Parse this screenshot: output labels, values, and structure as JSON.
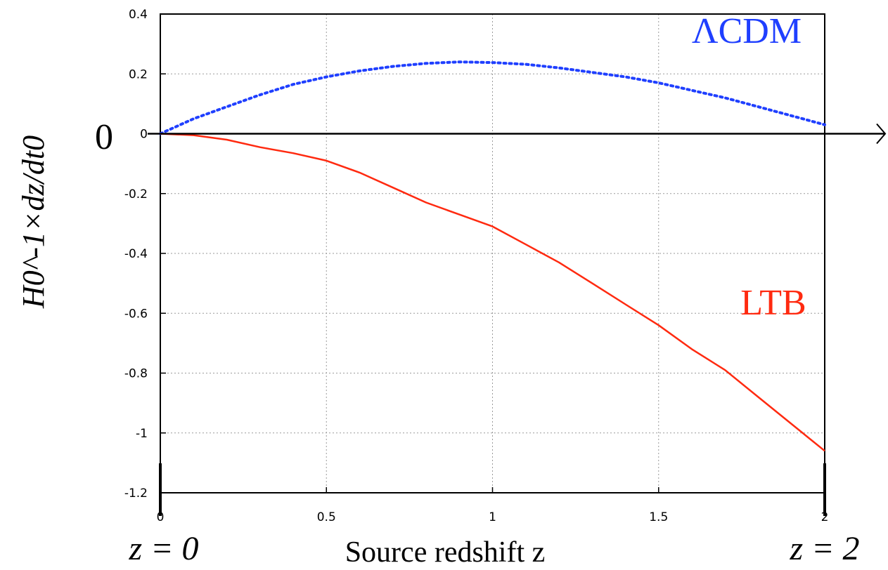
{
  "chart_data": {
    "type": "line",
    "xlabel": "Source redshift z",
    "ylabel": "H0^-1×dz/dt0",
    "xlim": [
      0,
      2
    ],
    "ylim": [
      -1.2,
      0.4
    ],
    "x_ticks": [
      "0",
      "0.5",
      "1",
      "1.5",
      "2"
    ],
    "y_ticks": [
      "0.4",
      "0.2",
      "0",
      "-0.2",
      "-0.4",
      "-0.6",
      "-0.8",
      "-1",
      "-1.2"
    ],
    "grid": true,
    "series": [
      {
        "name": "ΛCDM",
        "color": "#1f3fff",
        "style": "dotted",
        "x": [
          0,
          0.1,
          0.2,
          0.3,
          0.4,
          0.5,
          0.6,
          0.7,
          0.8,
          0.9,
          1.0,
          1.1,
          1.2,
          1.3,
          1.4,
          1.5,
          1.6,
          1.7,
          1.8,
          1.9,
          2.0
        ],
        "y": [
          0,
          0.05,
          0.09,
          0.13,
          0.165,
          0.19,
          0.21,
          0.225,
          0.235,
          0.24,
          0.238,
          0.232,
          0.22,
          0.205,
          0.19,
          0.17,
          0.145,
          0.12,
          0.09,
          0.06,
          0.03
        ]
      },
      {
        "name": "LTB",
        "color": "#ff2a10",
        "style": "solid",
        "x": [
          0,
          0.1,
          0.2,
          0.3,
          0.4,
          0.5,
          0.6,
          0.7,
          0.8,
          0.9,
          1.0,
          1.1,
          1.2,
          1.3,
          1.4,
          1.5,
          1.6,
          1.7,
          1.8,
          1.9,
          2.0
        ],
        "y": [
          0,
          -0.005,
          -0.02,
          -0.045,
          -0.065,
          -0.09,
          -0.13,
          -0.18,
          -0.23,
          -0.27,
          -0.31,
          -0.37,
          -0.43,
          -0.5,
          -0.57,
          -0.64,
          -0.72,
          -0.79,
          -0.88,
          -0.97,
          -1.06
        ]
      }
    ],
    "annotations": {
      "lcdm_label": "ΛCDM",
      "ltb_label": "LTB",
      "zero_label": "0",
      "z0_label": "z = 0",
      "z2_label": "z = 2",
      "axis_caption": "Source redshift z"
    }
  }
}
